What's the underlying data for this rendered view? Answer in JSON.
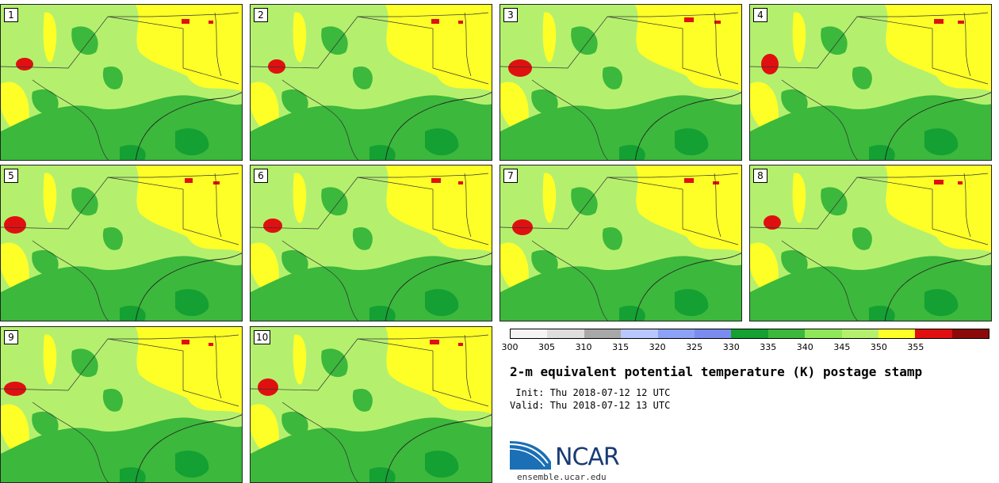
{
  "panels": [
    {
      "label": "1",
      "hot": [
        [
          30,
          75,
          22,
          16
        ]
      ],
      "top": [
        [
          228,
          18,
          10,
          6
        ],
        [
          262,
          20,
          6,
          4
        ]
      ]
    },
    {
      "label": "2",
      "hot": [
        [
          33,
          78,
          22,
          18
        ]
      ],
      "top": [
        [
          228,
          18,
          10,
          6
        ],
        [
          262,
          20,
          6,
          4
        ]
      ]
    },
    {
      "label": "3",
      "hot": [
        [
          25,
          80,
          30,
          22
        ]
      ],
      "top": [
        [
          232,
          16,
          12,
          6
        ],
        [
          270,
          20,
          8,
          4
        ]
      ]
    },
    {
      "label": "4",
      "hot": [
        [
          25,
          75,
          22,
          26
        ]
      ],
      "top": [
        [
          232,
          18,
          12,
          6
        ],
        [
          262,
          20,
          8,
          4
        ]
      ]
    },
    {
      "label": "5",
      "hot": [
        [
          18,
          75,
          28,
          22
        ]
      ],
      "top": [
        [
          232,
          16,
          10,
          6
        ],
        [
          268,
          20,
          8,
          4
        ]
      ]
    },
    {
      "label": "6",
      "hot": [
        [
          28,
          76,
          24,
          18
        ]
      ],
      "top": [
        [
          228,
          16,
          12,
          6
        ],
        [
          262,
          20,
          6,
          4
        ]
      ]
    },
    {
      "label": "7",
      "hot": [
        [
          28,
          78,
          26,
          20
        ]
      ],
      "top": [
        [
          232,
          16,
          12,
          6
        ],
        [
          268,
          20,
          8,
          4
        ]
      ]
    },
    {
      "label": "8",
      "hot": [
        [
          28,
          72,
          22,
          18
        ]
      ],
      "top": [
        [
          232,
          18,
          12,
          6
        ],
        [
          262,
          20,
          6,
          4
        ]
      ]
    },
    {
      "label": "9",
      "hot": [
        [
          18,
          78,
          28,
          18
        ]
      ],
      "top": [
        [
          228,
          16,
          10,
          6
        ],
        [
          262,
          20,
          6,
          4
        ]
      ]
    },
    {
      "label": "10",
      "hot": [
        [
          22,
          76,
          26,
          22
        ]
      ],
      "top": [
        [
          226,
          16,
          12,
          6
        ],
        [
          262,
          20,
          6,
          4
        ]
      ]
    }
  ],
  "colorbar": {
    "colors": [
      "#f4f4f4",
      "#dedede",
      "#a8a8a8",
      "#b8c8ff",
      "#8ca2f6",
      "#7a8cf0",
      "#14a032",
      "#3cb83c",
      "#8ee85a",
      "#b4f06e",
      "#ffff28",
      "#e01010",
      "#8c0a0a"
    ],
    "ticks": [
      "300",
      "305",
      "310",
      "315",
      "320",
      "325",
      "330",
      "335",
      "340",
      "345",
      "350",
      "355"
    ]
  },
  "title": "2-m equivalent potential temperature (K) postage stamp",
  "init": " Init: Thu 2018-07-12 12 UTC",
  "valid": "Valid: Thu 2018-07-12 13 UTC",
  "logo": {
    "name": "NCAR",
    "site": "ensemble.ucar.edu"
  }
}
